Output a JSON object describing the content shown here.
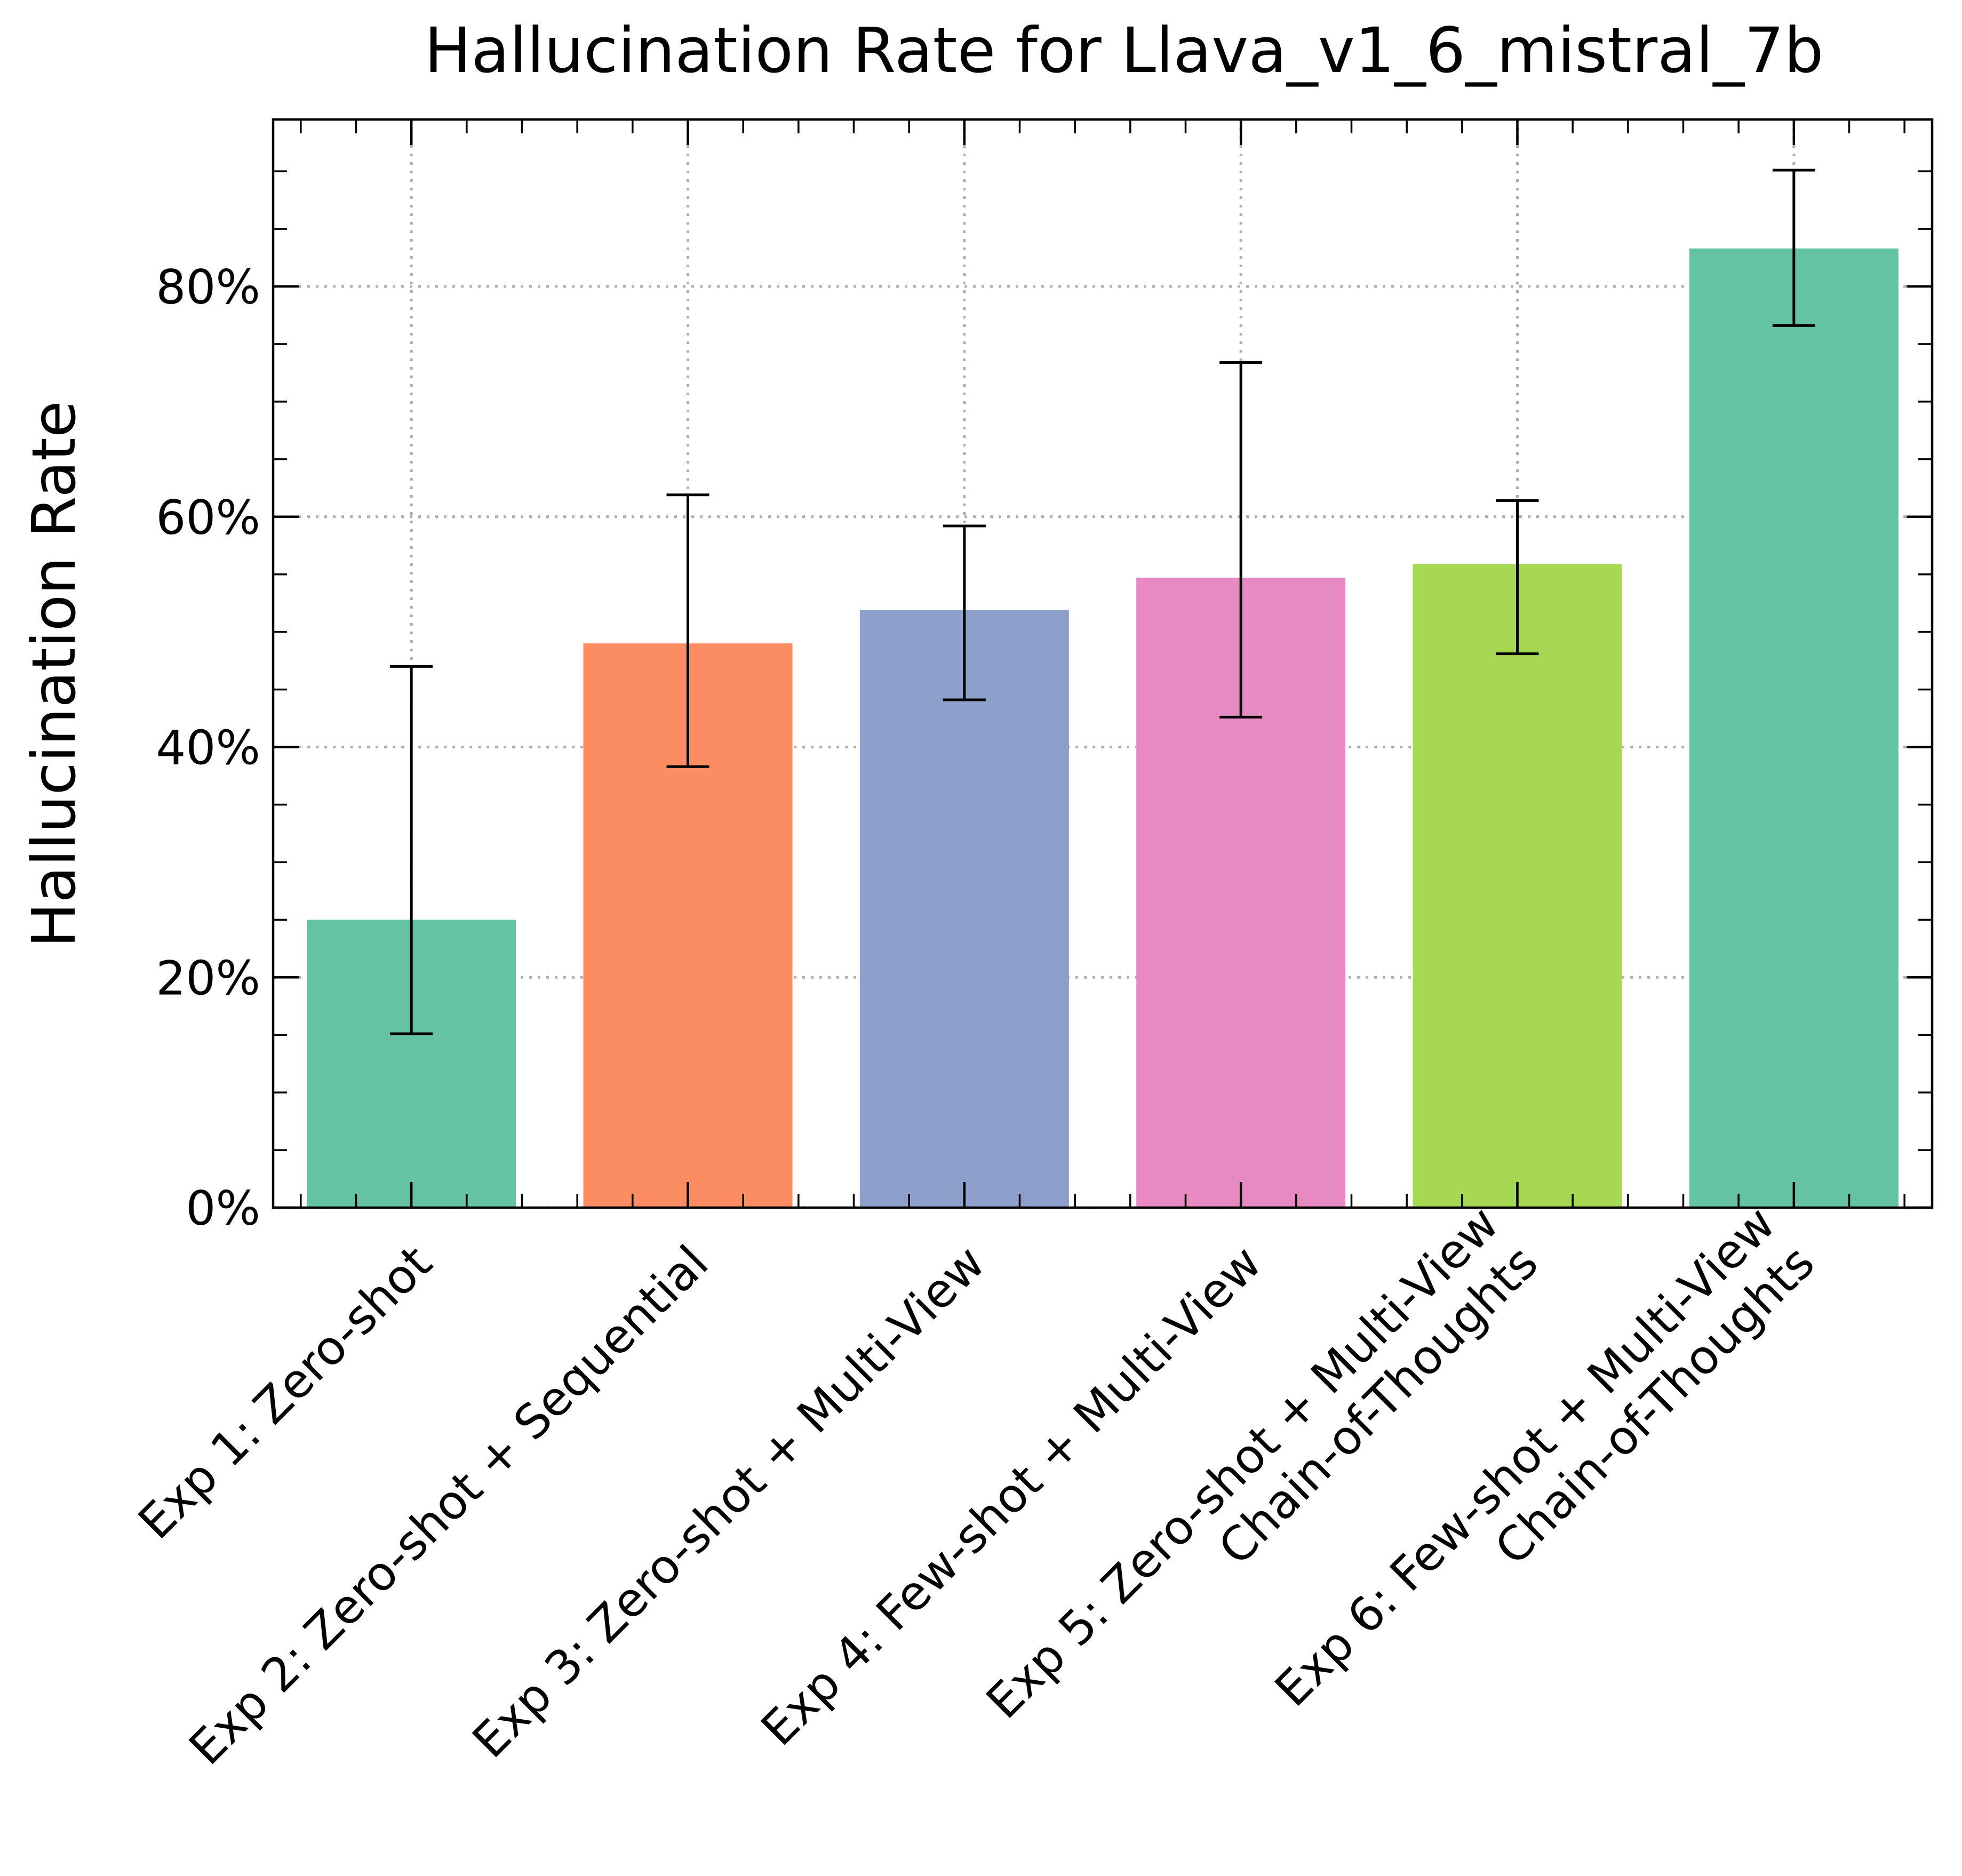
{
  "chart_data": {
    "type": "bar",
    "title": "Hallucination Rate for Llava_v1_6_mistral_7b",
    "xlabel": "",
    "ylabel": "Hallucination Rate",
    "ylim": [
      0,
      0.945
    ],
    "yticks": [
      {
        "value": 0.0,
        "label": "0%"
      },
      {
        "value": 0.2,
        "label": "20%"
      },
      {
        "value": 0.4,
        "label": "40%"
      },
      {
        "value": 0.6,
        "label": "60%"
      },
      {
        "value": 0.8,
        "label": "80%"
      }
    ],
    "grid": true,
    "legend": "none",
    "categories": [
      [
        "Exp 1: Zero-shot"
      ],
      [
        "Exp 2: Zero-shot + Sequential"
      ],
      [
        "Exp 3: Zero-shot + Multi-View"
      ],
      [
        "Exp 4: Few-shot + Multi-View"
      ],
      [
        "Exp 5: Zero-shot + Multi-View",
        "Chain-of-Thoughts"
      ],
      [
        "Exp 6: Few-shot + Multi-View",
        "Chain-of-Thoughts"
      ]
    ],
    "values": [
      0.25,
      0.49,
      0.519,
      0.547,
      0.559,
      0.833
    ],
    "error_low": [
      0.151,
      0.383,
      0.441,
      0.426,
      0.481,
      0.766
    ],
    "error_high": [
      0.47,
      0.619,
      0.592,
      0.734,
      0.614,
      0.901
    ],
    "colors": [
      "#66c2a5",
      "#fc8d62",
      "#8da0cb",
      "#e78ac3",
      "#a6d854",
      "#66c2a5"
    ]
  }
}
